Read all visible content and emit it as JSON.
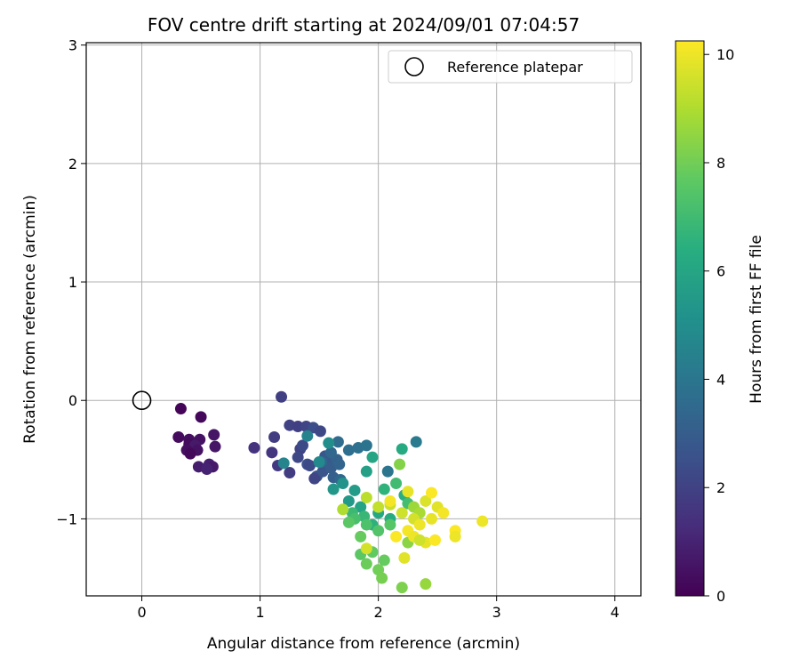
{
  "chart_data": {
    "type": "scatter",
    "title": "FOV centre drift starting at 2024/09/01 07:04:57",
    "xlabel": "Angular distance from reference (arcmin)",
    "ylabel": "Rotation from reference (arcmin)",
    "xlim": [
      -0.47,
      4.22
    ],
    "ylim": [
      -1.65,
      3.02
    ],
    "xticks": [
      0,
      1,
      2,
      3,
      4
    ],
    "yticks": [
      -1,
      0,
      1,
      2,
      3
    ],
    "xtick_labels": [
      "0",
      "1",
      "2",
      "3",
      "4"
    ],
    "ytick_labels": [
      "−1",
      "0",
      "1",
      "2",
      "3"
    ],
    "grid": true,
    "legend": {
      "placement": "top-right",
      "entries": [
        "Reference platepar"
      ]
    },
    "reference_point": {
      "x": 0,
      "y": 0,
      "label": "Reference platepar"
    },
    "colorbar": {
      "label": "Hours from first FF file",
      "range": [
        0,
        10.25
      ],
      "ticks": [
        0,
        2,
        4,
        6,
        8,
        10
      ],
      "tick_labels": [
        "0",
        "2",
        "4",
        "6",
        "8",
        "10"
      ],
      "colormap": "viridis"
    },
    "points": [
      [
        0.33,
        -0.07,
        0.1
      ],
      [
        0.5,
        -0.14,
        0.2
      ],
      [
        0.31,
        -0.31,
        0.3
      ],
      [
        0.4,
        -0.33,
        0.4
      ],
      [
        0.49,
        -0.33,
        0.5
      ],
      [
        0.61,
        -0.29,
        0.6
      ],
      [
        0.4,
        -0.37,
        0.3
      ],
      [
        0.45,
        -0.38,
        0.7
      ],
      [
        0.38,
        -0.42,
        0.4
      ],
      [
        0.47,
        -0.42,
        0.5
      ],
      [
        0.62,
        -0.39,
        0.6
      ],
      [
        0.41,
        -0.45,
        0.2
      ],
      [
        0.48,
        -0.56,
        0.8
      ],
      [
        0.57,
        -0.54,
        0.9
      ],
      [
        0.6,
        -0.56,
        0.7
      ],
      [
        0.55,
        -0.58,
        1.0
      ],
      [
        0.95,
        -0.4,
        1.5
      ],
      [
        1.1,
        -0.44,
        1.6
      ],
      [
        1.12,
        -0.31,
        1.8
      ],
      [
        1.18,
        0.03,
        1.9
      ],
      [
        1.15,
        -0.55,
        1.7
      ],
      [
        1.25,
        -0.61,
        1.8
      ],
      [
        1.25,
        -0.21,
        2.0
      ],
      [
        1.32,
        -0.22,
        1.9
      ],
      [
        1.39,
        -0.22,
        2.1
      ],
      [
        1.34,
        -0.41,
        2.0
      ],
      [
        1.32,
        -0.48,
        2.2
      ],
      [
        1.36,
        -0.38,
        2.3
      ],
      [
        1.45,
        -0.23,
        2.4
      ],
      [
        1.51,
        -0.26,
        2.2
      ],
      [
        1.4,
        -0.54,
        2.5
      ],
      [
        1.42,
        -0.55,
        2.3
      ],
      [
        1.48,
        -0.64,
        2.6
      ],
      [
        1.46,
        -0.66,
        2.1
      ],
      [
        1.53,
        -0.6,
        2.7
      ],
      [
        1.55,
        -0.47,
        2.8
      ],
      [
        1.58,
        -0.52,
        2.9
      ],
      [
        1.6,
        -0.57,
        3.0
      ],
      [
        1.62,
        -0.65,
        3.1
      ],
      [
        1.65,
        -0.5,
        3.2
      ],
      [
        1.67,
        -0.54,
        3.3
      ],
      [
        1.52,
        -0.52,
        3.4
      ],
      [
        1.68,
        -0.67,
        3.5
      ],
      [
        1.66,
        -0.35,
        3.6
      ],
      [
        1.75,
        -0.42,
        3.7
      ],
      [
        1.83,
        -0.4,
        3.8
      ],
      [
        1.9,
        -0.38,
        3.9
      ],
      [
        1.6,
        -0.44,
        3.4
      ],
      [
        2.08,
        -0.6,
        4.0
      ],
      [
        2.32,
        -0.35,
        4.2
      ],
      [
        1.4,
        -0.3,
        4.5
      ],
      [
        1.2,
        -0.53,
        4.6
      ],
      [
        1.5,
        -0.52,
        4.8
      ],
      [
        1.58,
        -0.36,
        5.0
      ],
      [
        1.7,
        -0.7,
        5.2
      ],
      [
        1.62,
        -0.75,
        5.4
      ],
      [
        1.8,
        -0.76,
        5.6
      ],
      [
        1.9,
        -0.6,
        5.8
      ],
      [
        1.95,
        -0.48,
        6.0
      ],
      [
        2.2,
        -0.41,
        6.2
      ],
      [
        1.75,
        -0.85,
        5.5
      ],
      [
        1.85,
        -0.9,
        5.9
      ],
      [
        2.0,
        -0.95,
        6.1
      ],
      [
        2.1,
        -1.0,
        6.3
      ],
      [
        1.95,
        -1.05,
        6.5
      ],
      [
        2.22,
        -0.8,
        6.4
      ],
      [
        2.05,
        -0.75,
        6.6
      ],
      [
        1.88,
        -0.98,
        6.8
      ],
      [
        1.78,
        -0.95,
        6.9
      ],
      [
        2.15,
        -0.7,
        7.0
      ],
      [
        2.25,
        -0.87,
        7.1
      ],
      [
        1.8,
        -1.0,
        7.2
      ],
      [
        1.9,
        -1.05,
        7.3
      ],
      [
        2.0,
        -1.1,
        7.4
      ],
      [
        2.1,
        -1.05,
        7.5
      ],
      [
        1.85,
        -1.3,
        7.6
      ],
      [
        1.95,
        -1.28,
        7.7
      ],
      [
        2.05,
        -1.35,
        7.8
      ],
      [
        1.9,
        -1.38,
        7.9
      ],
      [
        2.0,
        -1.43,
        8.0
      ],
      [
        2.03,
        -1.5,
        8.1
      ],
      [
        2.2,
        -1.58,
        8.2
      ],
      [
        1.75,
        -1.03,
        7.6
      ],
      [
        1.85,
        -1.15,
        7.8
      ],
      [
        2.18,
        -0.54,
        8.3
      ],
      [
        2.25,
        -1.2,
        8.4
      ],
      [
        2.4,
        -1.55,
        8.6
      ],
      [
        2.3,
        -0.9,
        8.7
      ],
      [
        2.35,
        -0.95,
        8.9
      ],
      [
        1.7,
        -0.92,
        9.0
      ],
      [
        1.9,
        -0.82,
        9.2
      ],
      [
        2.0,
        -0.9,
        9.3
      ],
      [
        2.1,
        -0.88,
        9.4
      ],
      [
        2.2,
        -0.95,
        9.5
      ],
      [
        2.3,
        -1.0,
        9.6
      ],
      [
        2.4,
        -0.85,
        9.7
      ],
      [
        2.5,
        -0.9,
        9.8
      ],
      [
        2.45,
        -1.0,
        9.9
      ],
      [
        2.35,
        -1.05,
        10.0
      ],
      [
        2.25,
        -1.1,
        10.1
      ],
      [
        2.15,
        -1.15,
        10.2
      ],
      [
        2.3,
        -1.15,
        10.0
      ],
      [
        2.4,
        -1.2,
        9.9
      ],
      [
        2.55,
        -0.95,
        10.1
      ],
      [
        2.65,
        -1.1,
        10.2
      ],
      [
        2.88,
        -1.02,
        10.0
      ],
      [
        2.22,
        -1.33,
        9.8
      ],
      [
        1.9,
        -1.25,
        9.6
      ],
      [
        2.45,
        -0.78,
        10.2
      ],
      [
        2.35,
        -1.18,
        9.5
      ],
      [
        2.65,
        -1.15,
        10.0
      ],
      [
        2.1,
        -0.85,
        10.1
      ],
      [
        2.25,
        -0.77,
        9.9
      ],
      [
        2.48,
        -1.18,
        10.2
      ]
    ]
  }
}
